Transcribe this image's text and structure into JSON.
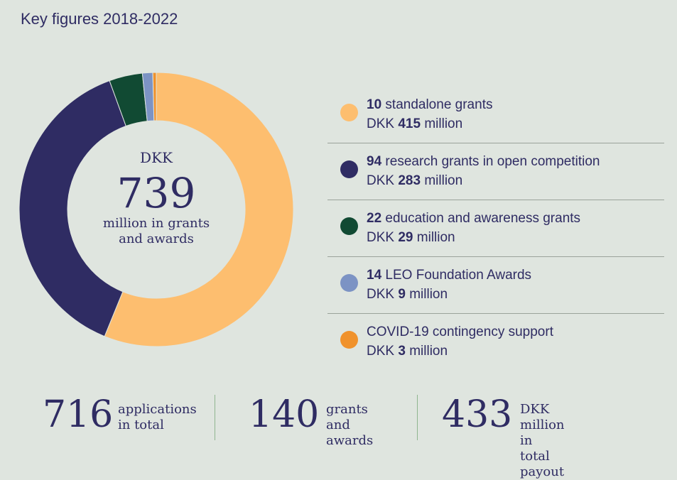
{
  "title": "Key figures 2018-2022",
  "center": {
    "currency": "DKK",
    "total": "739",
    "subtitle_line1": "million in grants",
    "subtitle_line2": "and awards"
  },
  "legend": [
    {
      "count": "10",
      "label": " standalone grants",
      "amount_prefix": "DKK ",
      "amount": "415",
      "amount_suffix": " million",
      "color": "#fdbe6f"
    },
    {
      "count": "94",
      "label": " research grants in open competition",
      "amount_prefix": "DKK ",
      "amount": "283",
      "amount_suffix": " million",
      "color": "#2f2c63"
    },
    {
      "count": "22",
      "label": " education and awareness grants",
      "amount_prefix": "DKK ",
      "amount": "29",
      "amount_suffix": " million",
      "color": "#114a33"
    },
    {
      "count": "14",
      "label": " LEO Foundation Awards",
      "amount_prefix": "DKK ",
      "amount": "9",
      "amount_suffix": " million",
      "color": "#7c93c4"
    },
    {
      "count": "",
      "label": "COVID-19 contingency support",
      "amount_prefix": "DKK ",
      "amount": "3",
      "amount_suffix": " million",
      "color": "#f0922c"
    }
  ],
  "stats": [
    {
      "number": "716",
      "line1": "applications",
      "line2": "in total"
    },
    {
      "number": "140",
      "line1": "grants and",
      "line2": "awards"
    },
    {
      "number": "433",
      "line1": "DKK million",
      "line2": "in total payout"
    }
  ],
  "chart_data": {
    "type": "pie",
    "title": "Key figures 2018-2022",
    "unit": "DKK million",
    "categories": [
      "standalone grants",
      "research grants in open competition",
      "education and awareness grants",
      "LEO Foundation Awards",
      "COVID-19 contingency support"
    ],
    "values": [
      415,
      283,
      29,
      9,
      3
    ],
    "colors": [
      "#fdbe6f",
      "#2f2c63",
      "#114a33",
      "#7c93c4",
      "#f0922c"
    ]
  }
}
